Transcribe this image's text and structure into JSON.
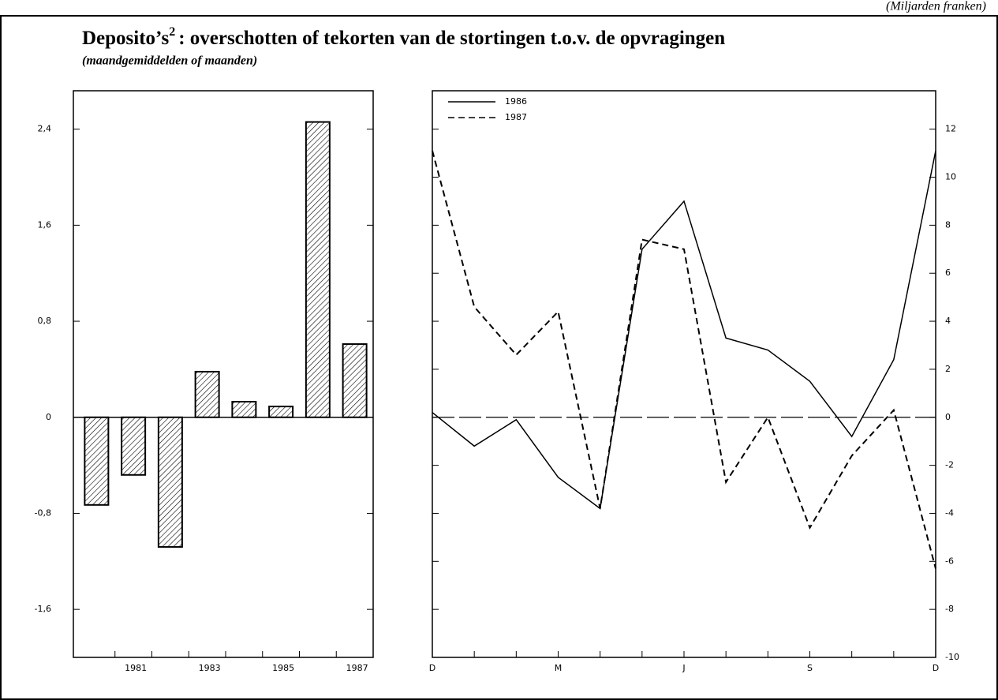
{
  "header": {
    "title": [
      "Deposito’s",
      "2",
      ": overschotten of tekorten van de stortingen t.o.v. de opvragingen"
    ],
    "subtitle": "(maandgemiddelden of maanden)",
    "unit_note": "(Miljarden franken)"
  },
  "chart_data": [
    {
      "type": "bar",
      "color": "#000000",
      "hatch": true,
      "categories": [
        null,
        "1981",
        null,
        "1983",
        null,
        "1985",
        null,
        "1987"
      ],
      "values": [
        -0.73,
        -0.48,
        -1.08,
        0.38,
        0.13,
        0.09,
        2.46,
        0.61
      ],
      "ylim": [
        -2.0,
        2.72
      ],
      "yticks": [
        {
          "value": -1.6,
          "label": "-1,6"
        },
        {
          "value": -0.8,
          "label": "-0,8"
        },
        0,
        {
          "value": 0.8,
          "label": "0,8"
        },
        {
          "value": 1.6,
          "label": "1,6"
        },
        {
          "value": 2.4,
          "label": "2,4"
        }
      ],
      "axis_side": "left"
    },
    {
      "type": "line",
      "legend": "top-left",
      "categories": [
        "D",
        null,
        null,
        "M",
        null,
        null,
        "J",
        null,
        null,
        "S",
        null,
        null,
        "D"
      ],
      "series": [
        {
          "name": "1986",
          "color": "#000000",
          "style": "solid",
          "values": [
            0.2,
            -1.2,
            -0.1,
            -2.5,
            -3.8,
            7.0,
            9.0,
            3.3,
            2.8,
            1.5,
            -0.8,
            2.4,
            11.1
          ]
        },
        {
          "name": "1987",
          "color": "#000000",
          "style": "dashed",
          "values": [
            11.1,
            4.6,
            2.6,
            4.4,
            -3.8,
            7.4,
            7.0,
            -2.7,
            0,
            -4.6,
            -1.6,
            0.3,
            -6.3
          ]
        }
      ],
      "ylim": [
        -10,
        13.6
      ],
      "yticks": [
        -10,
        -8,
        -6,
        -4,
        -2,
        0,
        2,
        4,
        6,
        8,
        10,
        12
      ],
      "axis_side": "right"
    }
  ]
}
